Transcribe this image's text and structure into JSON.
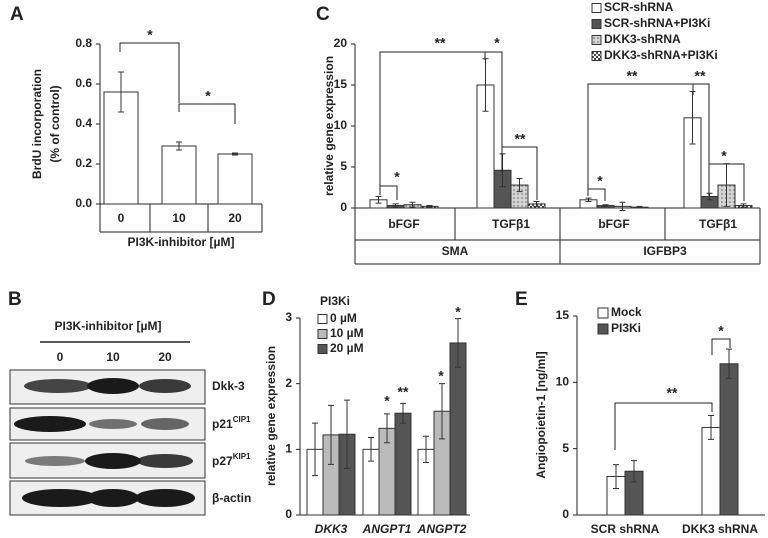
{
  "chart_data": [
    {
      "type": "bar",
      "panel": "A",
      "ylabel": [
        "BrdU incorporation",
        "(% of control)"
      ],
      "xlabel": "PI3K-inhibitor [µM]",
      "categories": [
        "0",
        "10",
        "20"
      ],
      "values": [
        0.56,
        0.29,
        0.25
      ],
      "errors": [
        0.1,
        0.02,
        0.005
      ],
      "color": "#ffffff",
      "ylim": [
        0,
        0.8
      ],
      "yticks": [
        {
          "value": 0,
          "label": "0.0"
        },
        0.2,
        0.4,
        0.6,
        0.8
      ],
      "annotations": [
        "*",
        "*"
      ]
    },
    {
      "type": "bar",
      "panel": "C",
      "ylabel": "relative gene expression",
      "categories": [
        "bFGF",
        "TGFβ1",
        "bFGF",
        "TGFβ1"
      ],
      "groups": [
        "SMA",
        "IGFBP3"
      ],
      "series": [
        {
          "name": "SCR-shRNA",
          "color": "#ffffff",
          "values": [
            1.0,
            15.0,
            1.0,
            11.0
          ],
          "errors": [
            0.4,
            3.2,
            0.2,
            3.2
          ]
        },
        {
          "name": "SCR-shRNA+PI3Ki",
          "color": "#555555",
          "values": [
            0.3,
            4.6,
            0.3,
            1.4
          ],
          "errors": [
            0.2,
            2.0,
            0.1,
            0.4
          ]
        },
        {
          "name": "DKK3-shRNA",
          "color": "#d4d4d4",
          "pattern": "dots",
          "values": [
            0.4,
            2.8,
            0.2,
            2.8
          ],
          "errors": [
            0.3,
            0.8,
            0.5,
            2.6
          ]
        },
        {
          "name": "DKK3-shRNA+PI3Ki",
          "color": "#ffffff",
          "pattern": "checker",
          "values": [
            0.2,
            0.5,
            0.1,
            0.3
          ],
          "errors": [
            0.1,
            0.3,
            0.1,
            0.2
          ]
        }
      ],
      "ylim": [
        0,
        20
      ],
      "yticks": [
        0,
        5,
        10,
        15,
        20
      ],
      "annotations": [
        "*",
        "**",
        "*",
        "**",
        "**",
        "**",
        "*",
        "*"
      ]
    },
    {
      "type": "bar",
      "panel": "D",
      "ylabel": "relative gene expression",
      "legend_title": "PI3Ki",
      "italic_categories": true,
      "categories": [
        "DKK3",
        "ANGPT1",
        "ANGPT2"
      ],
      "series": [
        {
          "name": "0 µM",
          "color": "#ffffff",
          "values": [
            1.0,
            1.0,
            1.0
          ],
          "errors": [
            0.4,
            0.18,
            0.2
          ]
        },
        {
          "name": "10 µM",
          "color": "#bbbbbb",
          "values": [
            1.22,
            1.32,
            1.58
          ],
          "errors": [
            0.45,
            0.22,
            0.42
          ]
        },
        {
          "name": "20 µM",
          "color": "#555555",
          "values": [
            1.23,
            1.55,
            2.62
          ],
          "errors": [
            0.52,
            0.15,
            0.37
          ]
        }
      ],
      "ylim": [
        0,
        3
      ],
      "yticks": [
        0,
        1,
        2,
        3
      ],
      "annotations": [
        "*",
        "**",
        "*",
        "*"
      ]
    },
    {
      "type": "bar",
      "panel": "E",
      "ylabel": "Angiopoietin-1 [ng/ml]",
      "categories": [
        "SCR shRNA",
        "DKK3 shRNA"
      ],
      "series": [
        {
          "name": "Mock",
          "color": "#ffffff",
          "values": [
            2.9,
            6.6
          ],
          "errors": [
            0.9,
            0.9
          ]
        },
        {
          "name": "PI3Ki",
          "color": "#555555",
          "values": [
            3.3,
            11.4
          ],
          "errors": [
            0.8,
            1.1
          ]
        }
      ],
      "ylim": [
        0,
        15
      ],
      "yticks": [
        0,
        5,
        10,
        15
      ],
      "annotations": [
        "**",
        "*"
      ]
    }
  ],
  "blot": {
    "panel": "B",
    "title": "PI3K-inhibitor [µM]",
    "lanes": [
      "0",
      "10",
      "20"
    ],
    "rows": [
      {
        "label": "Dkk-3"
      },
      {
        "label": "p21",
        "sup": "CIP1"
      },
      {
        "label": "p27",
        "sup": "KIP1"
      },
      {
        "label": "β-actin"
      }
    ]
  }
}
